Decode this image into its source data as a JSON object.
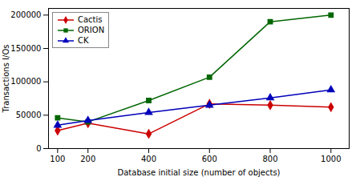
{
  "chart_data": {
    "type": "line",
    "x": [
      100,
      200,
      400,
      600,
      800,
      1000
    ],
    "series": [
      {
        "name": "Cactis",
        "color": "#cc0000",
        "marker": "diamond",
        "values": [
          27000,
          38000,
          22000,
          67000,
          65000,
          62000
        ]
      },
      {
        "name": "ORION",
        "color": "#006600",
        "marker": "square",
        "values": [
          46000,
          40000,
          72000,
          107000,
          190000,
          200000
        ]
      },
      {
        "name": "CK",
        "color": "#0000bb",
        "marker": "triangle",
        "values": [
          35000,
          42000,
          54000,
          65000,
          76000,
          88000
        ]
      }
    ],
    "xlabel": "Database initial size (number of objects)",
    "ylabel": "Transactions I/Os",
    "xlim": [
      70,
      1060
    ],
    "ylim": [
      0,
      210000
    ],
    "xticks": [
      100,
      200,
      400,
      600,
      800,
      1000
    ],
    "yticks": [
      0,
      50000,
      100000,
      150000,
      200000
    ],
    "grid": false,
    "legend": "upper left"
  }
}
